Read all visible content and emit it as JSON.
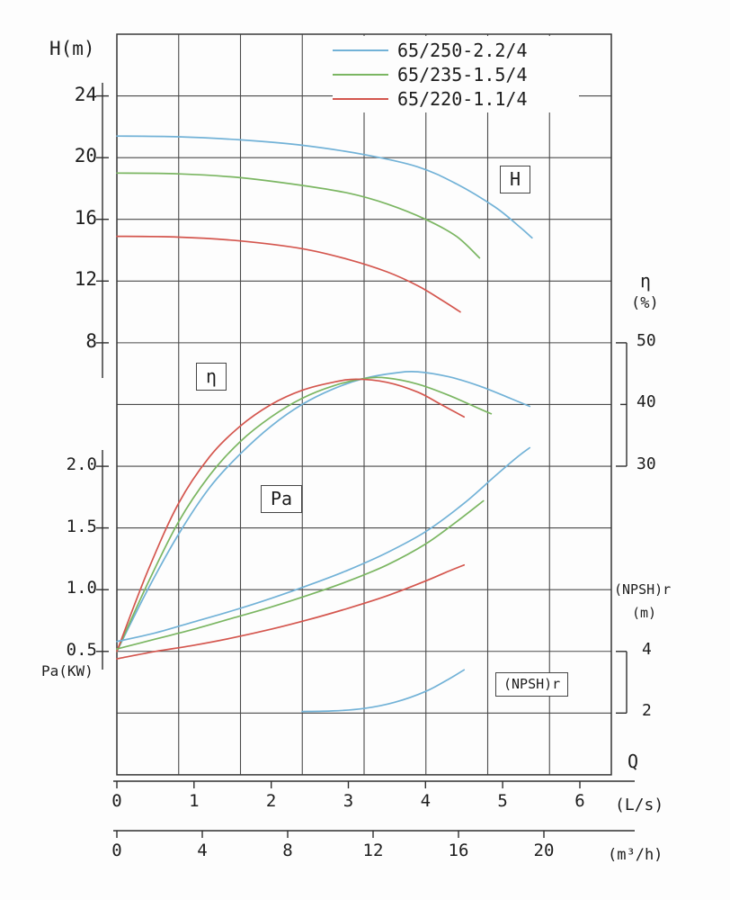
{
  "figure": {
    "bg": "#fdfdfd",
    "grid_color": "#4a4a4a"
  },
  "chart_data": {
    "type": "line",
    "title": "",
    "grid": true,
    "legend_position": "top-center",
    "axes": {
      "H": {
        "label": "H(m)",
        "side": "left",
        "ticks": [
          "24",
          "20",
          "16",
          "12",
          "8"
        ]
      },
      "Pa": {
        "label": "Pa(KW)",
        "side": "left",
        "ticks": [
          "2.0",
          "1.5",
          "1.0",
          "0.5"
        ]
      },
      "eta": {
        "label": "η",
        "unit": "(%)",
        "side": "right",
        "ticks": [
          "50",
          "40",
          "30"
        ]
      },
      "npsh": {
        "label": "(NPSH)r",
        "unit": "(m)",
        "side": "right",
        "ticks": [
          "4",
          "2"
        ]
      },
      "Q": {
        "label": "Q",
        "scales": [
          {
            "unit": "(L/s)",
            "ticks": [
              "0",
              "1",
              "2",
              "3",
              "4",
              "5",
              "6"
            ]
          },
          {
            "unit": "(m³/h)",
            "ticks": [
              "0",
              "4",
              "8",
              "12",
              "16",
              "20"
            ]
          }
        ]
      }
    },
    "curve_labels": {
      "H": "H",
      "eta": "η",
      "Pa": "Pa",
      "npsh": "(NPSH)r"
    },
    "legend": [
      {
        "model": "65/250-2.2/4",
        "color": "#72b2d7"
      },
      {
        "model": "65/235-1.5/4",
        "color": "#7bb662"
      },
      {
        "model": "65/220-1.1/4",
        "color": "#d4564e"
      }
    ],
    "series": [
      {
        "name": "H 65/250-2.2/4",
        "axis": "H",
        "color_ref": 0,
        "points": [
          [
            0,
            21.4
          ],
          [
            0.8,
            21.35
          ],
          [
            1.6,
            21.15
          ],
          [
            2.4,
            20.8
          ],
          [
            3.2,
            20.2
          ],
          [
            3.9,
            19.4
          ],
          [
            4.4,
            18.3
          ],
          [
            4.9,
            16.8
          ],
          [
            5.2,
            15.6
          ],
          [
            5.38,
            14.8
          ]
        ]
      },
      {
        "name": "H 65/235-1.5/4",
        "axis": "H",
        "color_ref": 1,
        "points": [
          [
            0,
            19.0
          ],
          [
            0.8,
            18.95
          ],
          [
            1.6,
            18.7
          ],
          [
            2.4,
            18.2
          ],
          [
            3.0,
            17.7
          ],
          [
            3.5,
            17.0
          ],
          [
            4.0,
            16.0
          ],
          [
            4.4,
            14.9
          ],
          [
            4.7,
            13.5
          ]
        ]
      },
      {
        "name": "H 65/220-1.1/4",
        "axis": "H",
        "color_ref": 2,
        "points": [
          [
            0,
            14.9
          ],
          [
            0.8,
            14.85
          ],
          [
            1.6,
            14.6
          ],
          [
            2.4,
            14.1
          ],
          [
            3.0,
            13.4
          ],
          [
            3.5,
            12.6
          ],
          [
            3.9,
            11.7
          ],
          [
            4.2,
            10.8
          ],
          [
            4.45,
            10.0
          ]
        ]
      },
      {
        "name": "η 65/250-2.2/4",
        "axis": "eta",
        "color_ref": 0,
        "points": [
          [
            0,
            0
          ],
          [
            0.4,
            10
          ],
          [
            0.8,
            19
          ],
          [
            1.2,
            26.5
          ],
          [
            1.6,
            32
          ],
          [
            2.0,
            36.5
          ],
          [
            2.4,
            40
          ],
          [
            2.8,
            42.5
          ],
          [
            3.2,
            44.2
          ],
          [
            3.6,
            45.1
          ],
          [
            3.9,
            45.3
          ],
          [
            4.3,
            44.5
          ],
          [
            4.7,
            43
          ],
          [
            5.1,
            41
          ],
          [
            5.35,
            39.7
          ]
        ]
      },
      {
        "name": "η 65/235-1.5/4",
        "axis": "eta",
        "color_ref": 1,
        "points": [
          [
            0,
            0
          ],
          [
            0.4,
            11
          ],
          [
            0.8,
            21
          ],
          [
            1.2,
            28.5
          ],
          [
            1.6,
            34
          ],
          [
            2.0,
            38
          ],
          [
            2.4,
            41
          ],
          [
            2.8,
            43
          ],
          [
            3.2,
            44.2
          ],
          [
            3.5,
            44.3
          ],
          [
            3.9,
            43.3
          ],
          [
            4.3,
            41.5
          ],
          [
            4.7,
            39.3
          ],
          [
            4.85,
            38.5
          ]
        ]
      },
      {
        "name": "η 65/220-1.1/4",
        "axis": "eta",
        "color_ref": 2,
        "points": [
          [
            0,
            0
          ],
          [
            0.4,
            13
          ],
          [
            0.8,
            24
          ],
          [
            1.2,
            31.5
          ],
          [
            1.6,
            36.5
          ],
          [
            2.0,
            40
          ],
          [
            2.4,
            42.3
          ],
          [
            2.8,
            43.6
          ],
          [
            3.1,
            44.1
          ],
          [
            3.5,
            43.6
          ],
          [
            3.9,
            42
          ],
          [
            4.2,
            40
          ],
          [
            4.5,
            38
          ]
        ]
      },
      {
        "name": "Pa 65/250-2.2/4",
        "axis": "Pa",
        "color_ref": 0,
        "points": [
          [
            0,
            0.58
          ],
          [
            0.5,
            0.65
          ],
          [
            1.0,
            0.74
          ],
          [
            1.5,
            0.83
          ],
          [
            2.0,
            0.93
          ],
          [
            2.5,
            1.04
          ],
          [
            3.0,
            1.16
          ],
          [
            3.5,
            1.3
          ],
          [
            4.0,
            1.47
          ],
          [
            4.5,
            1.7
          ],
          [
            4.9,
            1.92
          ],
          [
            5.2,
            2.08
          ],
          [
            5.35,
            2.15
          ]
        ]
      },
      {
        "name": "Pa 65/235-1.5/4",
        "axis": "Pa",
        "color_ref": 1,
        "points": [
          [
            0,
            0.52
          ],
          [
            0.5,
            0.6
          ],
          [
            1.0,
            0.68
          ],
          [
            1.5,
            0.77
          ],
          [
            2.0,
            0.86
          ],
          [
            2.5,
            0.96
          ],
          [
            3.0,
            1.07
          ],
          [
            3.5,
            1.2
          ],
          [
            4.0,
            1.37
          ],
          [
            4.4,
            1.55
          ],
          [
            4.75,
            1.72
          ]
        ]
      },
      {
        "name": "Pa 65/220-1.1/4",
        "axis": "Pa",
        "color_ref": 2,
        "points": [
          [
            0,
            0.44
          ],
          [
            0.5,
            0.5
          ],
          [
            1.0,
            0.55
          ],
          [
            1.5,
            0.61
          ],
          [
            2.0,
            0.68
          ],
          [
            2.5,
            0.76
          ],
          [
            3.0,
            0.85
          ],
          [
            3.5,
            0.95
          ],
          [
            4.0,
            1.07
          ],
          [
            4.3,
            1.15
          ],
          [
            4.5,
            1.2
          ]
        ]
      },
      {
        "name": "(NPSH)r 65/250-2.2/4",
        "axis": "npsh",
        "color_ref": 0,
        "points": [
          [
            2.4,
            2.05
          ],
          [
            2.8,
            2.07
          ],
          [
            3.2,
            2.15
          ],
          [
            3.6,
            2.35
          ],
          [
            4.0,
            2.7
          ],
          [
            4.3,
            3.1
          ],
          [
            4.5,
            3.4
          ]
        ]
      }
    ]
  }
}
